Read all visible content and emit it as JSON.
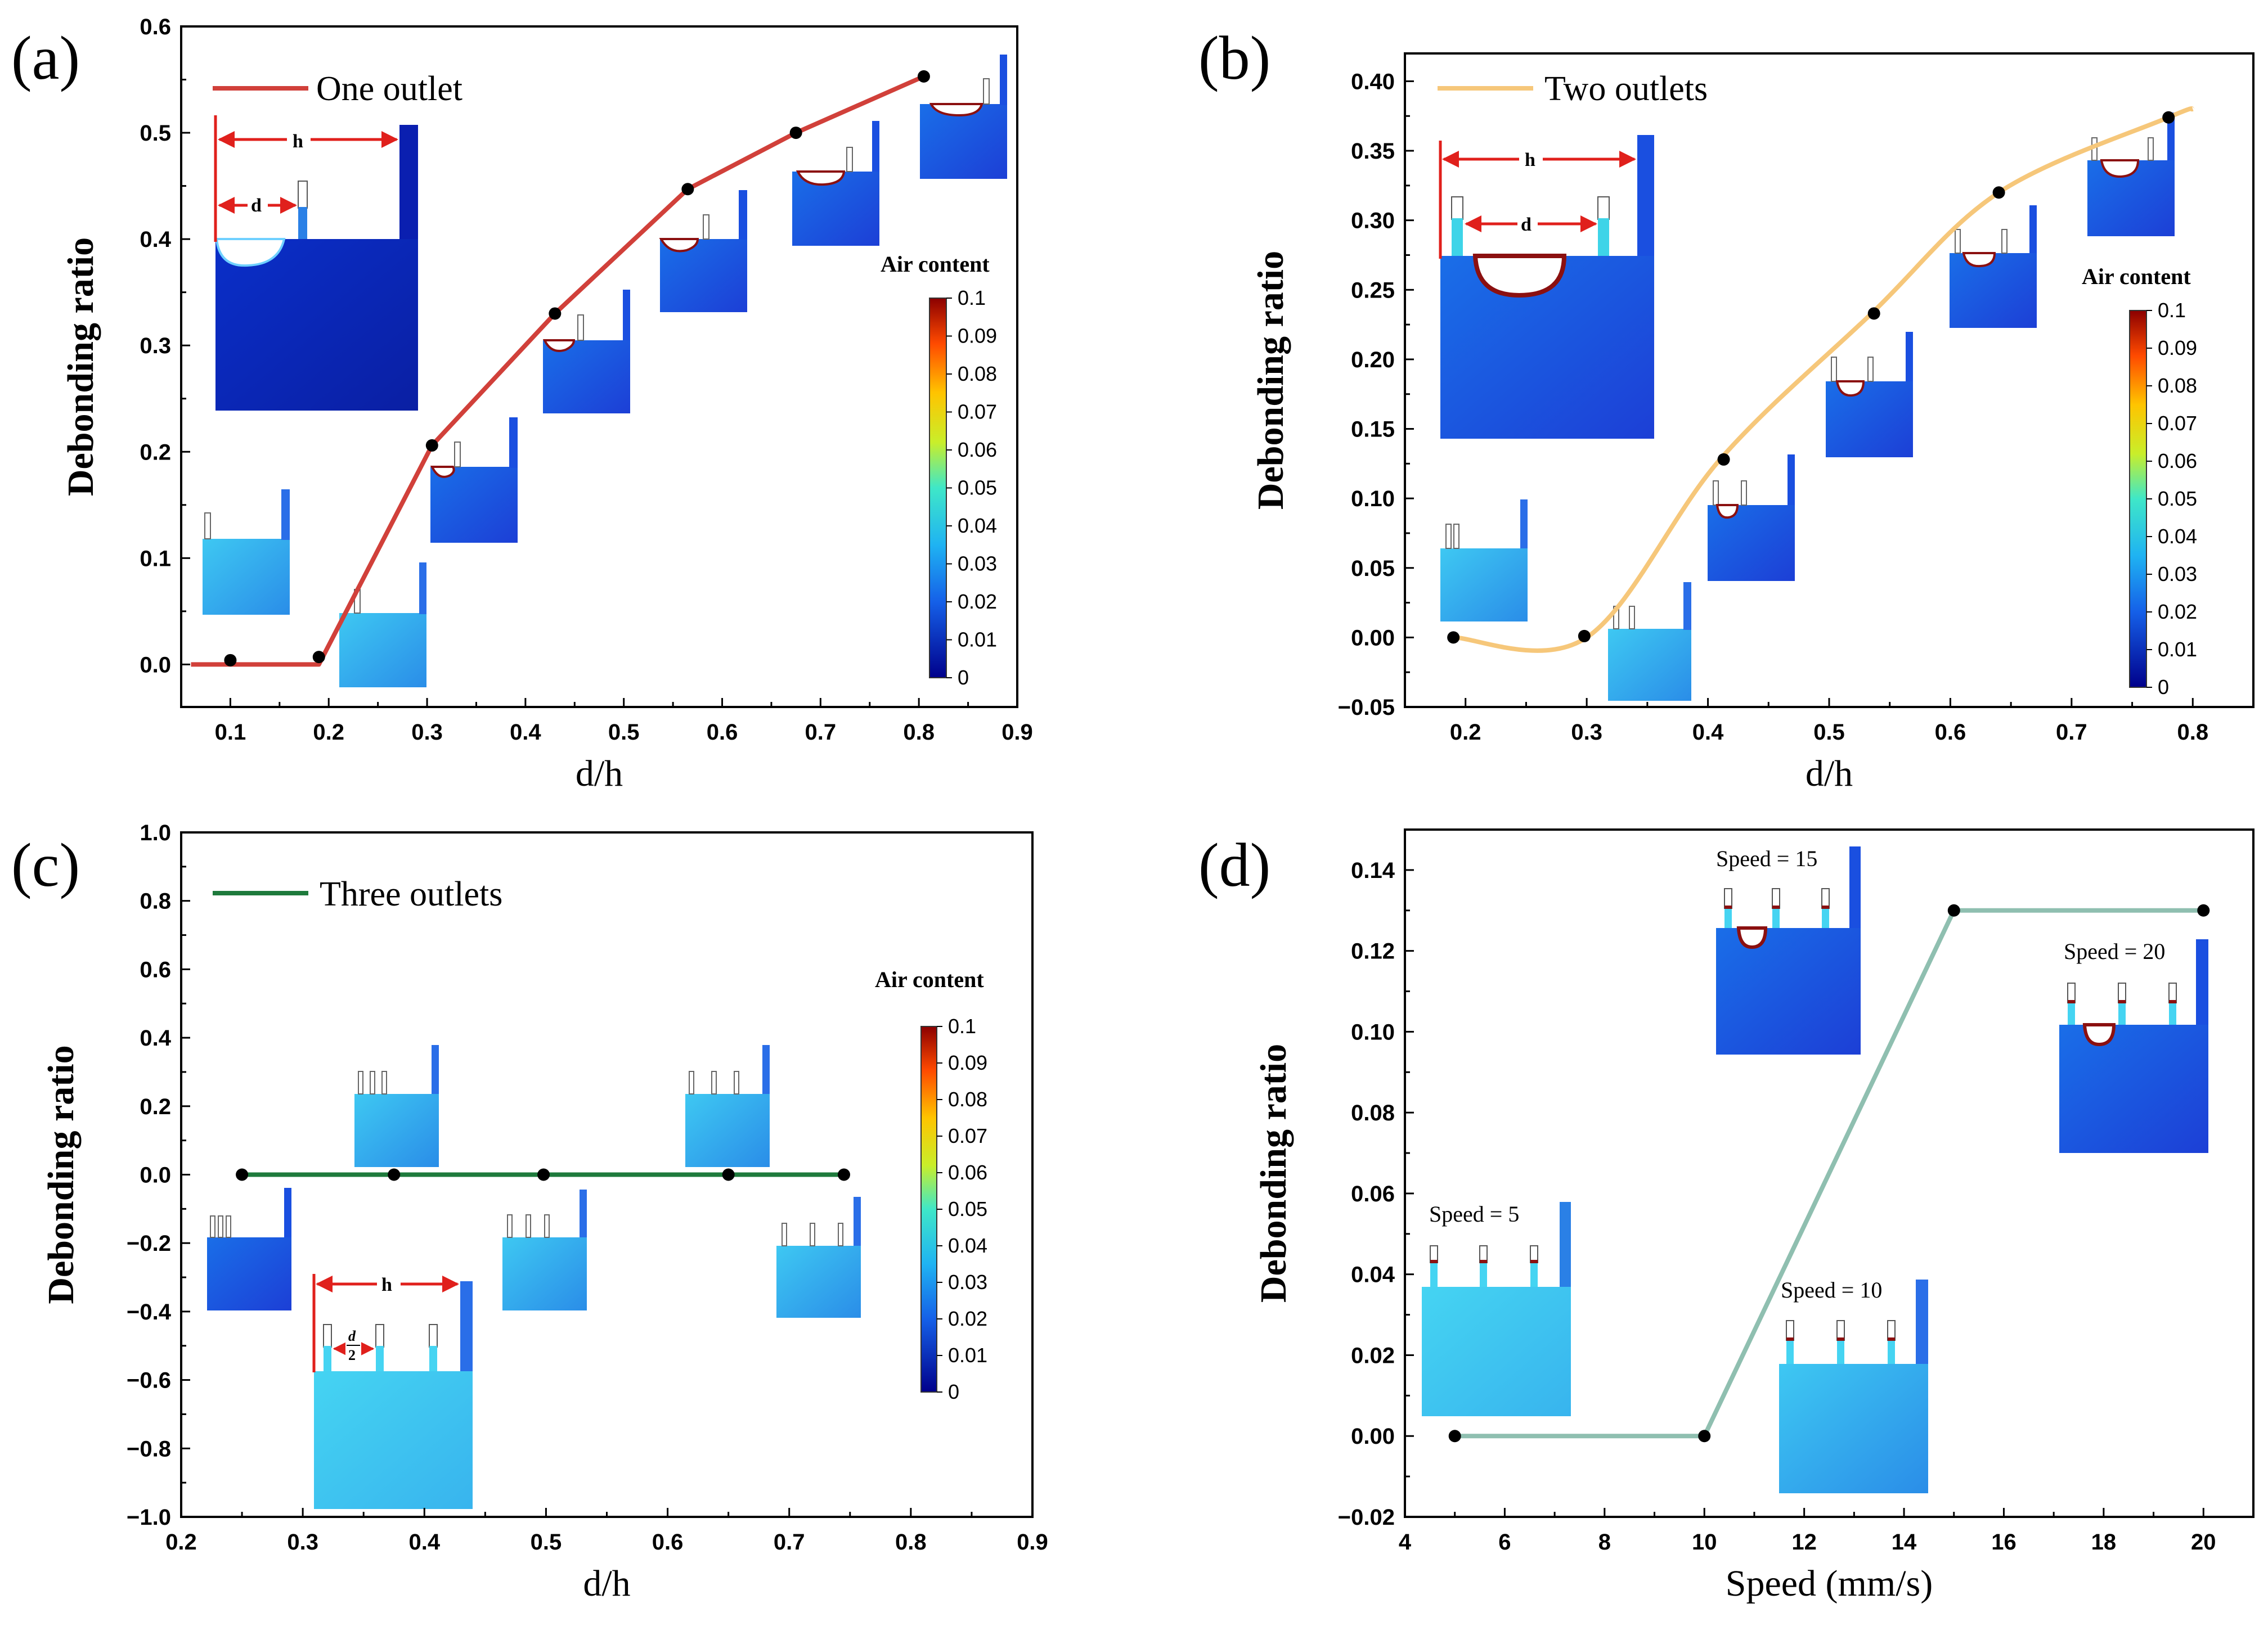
{
  "chart_data": [
    {
      "id": "a",
      "type": "line",
      "panel_label": "(a)",
      "xlabel": "d/h",
      "ylabel": "Debonding ratio",
      "xlim": [
        0.05,
        0.9
      ],
      "ylim": [
        -0.04,
        0.6
      ],
      "xticks": [
        0.1,
        0.2,
        0.3,
        0.4,
        0.5,
        0.6,
        0.7,
        0.8,
        0.9
      ],
      "yticks": [
        0.0,
        0.1,
        0.2,
        0.3,
        0.4,
        0.5,
        0.6
      ],
      "xtick_labels": [
        "0.1",
        "0.2",
        "0.3",
        "0.4",
        "0.5",
        "0.6",
        "0.7",
        "0.8",
        "0.9"
      ],
      "ytick_labels": [
        "0.0",
        "0.1",
        "0.2",
        "0.3",
        "0.4",
        "0.5",
        "0.6"
      ],
      "line_x": [
        0.06,
        0.1,
        0.19,
        0.305,
        0.43,
        0.565,
        0.675,
        0.805
      ],
      "line_y": [
        0.0,
        0.0,
        0.0,
        0.206,
        0.33,
        0.447,
        0.5,
        0.553
      ],
      "points_x": [
        0.1,
        0.19,
        0.305,
        0.43,
        0.565,
        0.675,
        0.805
      ],
      "points_y": [
        0.004,
        0.007,
        0.206,
        0.33,
        0.447,
        0.5,
        0.553
      ],
      "legend_label": "One outlet",
      "color": "#d1403a",
      "smooth": false,
      "colorbar": {
        "title": "Air content",
        "ticks": [
          "0.1",
          "0.09",
          "0.08",
          "0.07",
          "0.06",
          "0.05",
          "0.04",
          "0.03",
          "0.02",
          "0.01",
          "0"
        ]
      },
      "diagram_labels": [
        "h",
        "d"
      ]
    },
    {
      "id": "b",
      "type": "line",
      "panel_label": "(b)",
      "xlabel": "d/h",
      "ylabel": "Debonding ratio",
      "xlim": [
        0.15,
        0.85
      ],
      "ylim": [
        -0.05,
        0.42
      ],
      "xticks": [
        0.2,
        0.3,
        0.4,
        0.5,
        0.6,
        0.7,
        0.8
      ],
      "yticks": [
        -0.05,
        0.0,
        0.05,
        0.1,
        0.15,
        0.2,
        0.25,
        0.3,
        0.35,
        0.4
      ],
      "xtick_labels": [
        "0.2",
        "0.3",
        "0.4",
        "0.5",
        "0.6",
        "0.7",
        "0.8"
      ],
      "ytick_labels": [
        "−0.05",
        "0.00",
        "0.05",
        "0.10",
        "0.15",
        "0.20",
        "0.25",
        "0.30",
        "0.35",
        "0.40"
      ],
      "line_x": [
        0.19,
        0.3,
        0.41,
        0.535,
        0.64,
        0.78,
        0.8
      ],
      "line_y": [
        0.0,
        0.0,
        0.128,
        0.233,
        0.32,
        0.374,
        0.38
      ],
      "points_x": [
        0.19,
        0.298,
        0.413,
        0.537,
        0.64,
        0.78
      ],
      "points_y": [
        0.0,
        0.001,
        0.128,
        0.233,
        0.32,
        0.374
      ],
      "legend_label": "Two outlets",
      "color": "#f6c77a",
      "smooth": true,
      "colorbar": {
        "title": "Air content",
        "ticks": [
          "0.1",
          "0.09",
          "0.08",
          "0.07",
          "0.06",
          "0.05",
          "0.04",
          "0.03",
          "0.02",
          "0.01",
          "0"
        ]
      },
      "diagram_labels": [
        "h",
        "d"
      ]
    },
    {
      "id": "c",
      "type": "line",
      "panel_label": "(c)",
      "xlabel": "d/h",
      "ylabel": "Debonding ratio",
      "xlim": [
        0.2,
        0.9
      ],
      "ylim": [
        -1.0,
        1.0
      ],
      "xticks": [
        0.2,
        0.3,
        0.4,
        0.5,
        0.6,
        0.7,
        0.8,
        0.9
      ],
      "yticks": [
        -1.0,
        -0.8,
        -0.6,
        -0.4,
        -0.2,
        0.0,
        0.2,
        0.4,
        0.6,
        0.8,
        1.0
      ],
      "xtick_labels": [
        "0.2",
        "0.3",
        "0.4",
        "0.5",
        "0.6",
        "0.7",
        "0.8",
        "0.9"
      ],
      "ytick_labels": [
        "−1.0",
        "−0.8",
        "−0.6",
        "−0.4",
        "−0.2",
        "0.0",
        "0.2",
        "0.4",
        "0.6",
        "0.8",
        "1.0"
      ],
      "line_x": [
        0.25,
        0.375,
        0.5,
        0.65,
        0.745
      ],
      "line_y": [
        0.0,
        0.0,
        0.0,
        0.0,
        0.0
      ],
      "points_x": [
        0.25,
        0.375,
        0.498,
        0.65,
        0.745
      ],
      "points_y": [
        0.0,
        0.0,
        0.0,
        0.0,
        0.0
      ],
      "legend_label": "Three outlets",
      "color": "#1e7a3c",
      "smooth": false,
      "colorbar": {
        "title": "Air content",
        "ticks": [
          "0.1",
          "0.09",
          "0.08",
          "0.07",
          "0.06",
          "0.05",
          "0.04",
          "0.03",
          "0.02",
          "0.01",
          "0"
        ]
      },
      "diagram_labels": [
        "h",
        "d",
        "2"
      ]
    },
    {
      "id": "d",
      "type": "line",
      "panel_label": "(d)",
      "xlabel": "Speed (mm/s)",
      "ylabel": "Debonding ratio",
      "xlim": [
        4,
        21
      ],
      "ylim": [
        -0.02,
        0.15
      ],
      "xticks": [
        4,
        6,
        8,
        10,
        12,
        14,
        16,
        18,
        20
      ],
      "yticks": [
        -0.02,
        0.0,
        0.02,
        0.04,
        0.06,
        0.08,
        0.1,
        0.12,
        0.14
      ],
      "xtick_labels": [
        "4",
        "6",
        "8",
        "10",
        "12",
        "14",
        "16",
        "18",
        "20"
      ],
      "ytick_labels": [
        "−0.02",
        "0.00",
        "0.02",
        "0.04",
        "0.06",
        "0.08",
        "0.10",
        "0.12",
        "0.14"
      ],
      "line_x": [
        5,
        10,
        15,
        20
      ],
      "line_y": [
        0.0,
        0.0,
        0.13,
        0.13
      ],
      "points_x": [
        5,
        10,
        15,
        20
      ],
      "points_y": [
        0.0,
        0.0,
        0.13,
        0.13
      ],
      "color": "#8fbfb0",
      "smooth": false,
      "annotations": [
        "Speed = 5",
        "Speed = 10",
        "Speed = 15",
        "Speed = 20"
      ]
    }
  ]
}
